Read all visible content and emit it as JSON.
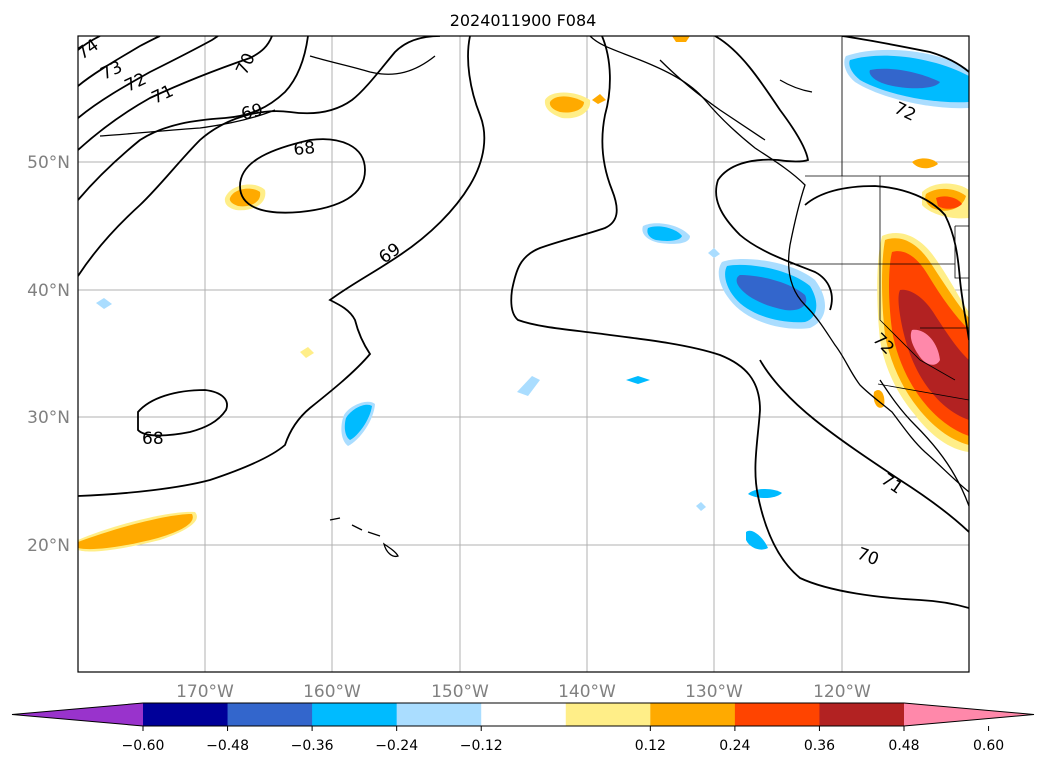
{
  "title": "2024011900 F084",
  "lat_labels": [
    "50°N",
    "40°N",
    "30°N",
    "20°N"
  ],
  "lon_labels": [
    "170°W",
    "160°W",
    "150°W",
    "140°W",
    "130°W",
    "120°W"
  ],
  "contour_labels": [
    "74",
    "73",
    "72",
    "71",
    "70",
    "69",
    "68",
    "69",
    "68",
    "72",
    "72",
    "71",
    "70"
  ],
  "colorbar": {
    "tick_labels": [
      "−0.60",
      "−0.48",
      "−0.36",
      "−0.24",
      "−0.12",
      "0.12",
      "0.24",
      "0.36",
      "0.48",
      "0.60"
    ],
    "colors": [
      "#9933cc",
      "#000099",
      "#3366cc",
      "#00bbff",
      "#aaddff",
      "#ffffff",
      "#ffee88",
      "#ffaa00",
      "#ff4400",
      "#b22222",
      "#ff88aa"
    ]
  }
}
